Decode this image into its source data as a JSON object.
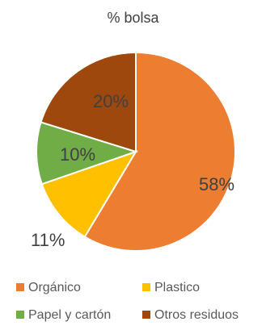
{
  "chart_data": {
    "type": "pie",
    "title": "% bolsa",
    "categories": [
      "Orgánico",
      "Plastico",
      "Papel y cartón",
      "Otros residuos"
    ],
    "values": [
      58,
      11,
      10,
      20
    ],
    "labels": [
      "58%",
      "11%",
      "10%",
      "20%"
    ],
    "colors": [
      "#ED7D31",
      "#FFC000",
      "#70AD47",
      "#9E480E"
    ],
    "legend_position": "bottom"
  }
}
